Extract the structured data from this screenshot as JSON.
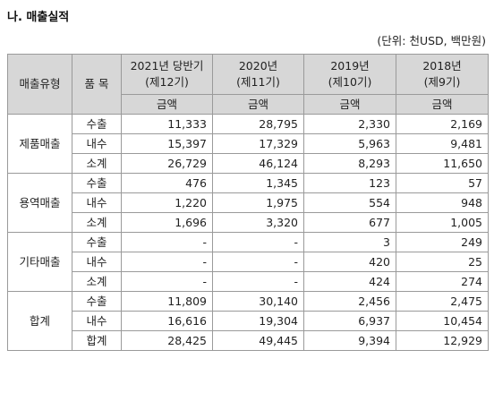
{
  "title": "나. 매출실적",
  "unit": "(단위: 천USD, 백만원)",
  "header": {
    "category": "매출유형",
    "item": "품 목",
    "periods": [
      {
        "line1": "2021년 당반기",
        "line2": "(제12기)"
      },
      {
        "line1": "2020년",
        "line2": "(제11기)"
      },
      {
        "line1": "2019년",
        "line2": "(제10기)"
      },
      {
        "line1": "2018년",
        "line2": "(제9기)"
      }
    ],
    "amount": "금액"
  },
  "groups": [
    {
      "name": "제품매출",
      "rows": [
        {
          "item": "수출",
          "values": [
            "11,333",
            "28,795",
            "2,330",
            "2,169"
          ]
        },
        {
          "item": "내수",
          "values": [
            "15,397",
            "17,329",
            "5,963",
            "9,481"
          ]
        },
        {
          "item": "소계",
          "values": [
            "26,729",
            "46,124",
            "8,293",
            "11,650"
          ]
        }
      ]
    },
    {
      "name": "용역매출",
      "rows": [
        {
          "item": "수출",
          "values": [
            "476",
            "1,345",
            "123",
            "57"
          ]
        },
        {
          "item": "내수",
          "values": [
            "1,220",
            "1,975",
            "554",
            "948"
          ]
        },
        {
          "item": "소계",
          "values": [
            "1,696",
            "3,320",
            "677",
            "1,005"
          ]
        }
      ]
    },
    {
      "name": "기타매출",
      "rows": [
        {
          "item": "수출",
          "values": [
            "-",
            "-",
            "3",
            "249"
          ]
        },
        {
          "item": "내수",
          "values": [
            "-",
            "-",
            "420",
            "25"
          ]
        },
        {
          "item": "소계",
          "values": [
            "-",
            "-",
            "424",
            "274"
          ]
        }
      ]
    },
    {
      "name": "합계",
      "rows": [
        {
          "item": "수출",
          "values": [
            "11,809",
            "30,140",
            "2,456",
            "2,475"
          ]
        },
        {
          "item": "내수",
          "values": [
            "16,616",
            "19,304",
            "6,937",
            "10,454"
          ]
        },
        {
          "item": "합계",
          "values": [
            "28,425",
            "49,445",
            "9,394",
            "12,929"
          ]
        }
      ]
    }
  ]
}
